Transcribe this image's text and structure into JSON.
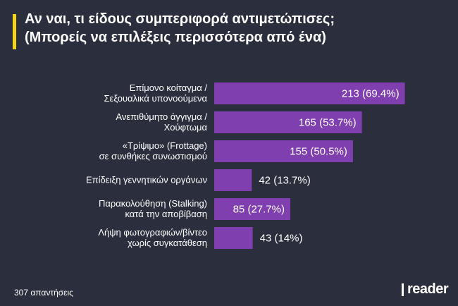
{
  "title": {
    "line1": "Αν ναι, τι είδους συμπεριφορά αντιμετώπισες;",
    "line2": "(Μπορείς να επιλέξεις περισσότερα από ένα)"
  },
  "colors": {
    "background": "#2b2f3d",
    "accent": "#f5d51a",
    "bar": "#7f3fae",
    "value_inside": "#ffffff",
    "value_outside": "#ffffff"
  },
  "chart_data": {
    "type": "bar",
    "orientation": "horizontal",
    "categories": [
      [
        "Επίμονο κοίταγμα /",
        "Σεξουαλικά υπονοούμενα"
      ],
      [
        "Ανεπιθύμητο άγγιγμα /",
        "Χούφτωμα"
      ],
      [
        "«Τρίψιμο» (Frottage)",
        "σε συνθήκες συνωστισμού"
      ],
      [
        "Επίδειξη γεννητικών οργάνων"
      ],
      [
        "Παρακολούθηση (Stalking)",
        "κατά την αποβίβαση"
      ],
      [
        "Λήψη φωτογραφιών/βίντεο",
        "χωρίς συγκατάθεση"
      ]
    ],
    "values": [
      213,
      165,
      155,
      42,
      85,
      43
    ],
    "value_labels": [
      "213 (69.4%)",
      "165 (53.7%)",
      "155 (50.5%)",
      "42 (13.7%)",
      "85 (27.7%)",
      "43 (14%)"
    ],
    "label_inside": [
      true,
      true,
      true,
      false,
      true,
      false
    ],
    "xlim": [
      0,
      307
    ]
  },
  "footer": {
    "responses": "307 απαντήσεις",
    "logo": "reader"
  }
}
